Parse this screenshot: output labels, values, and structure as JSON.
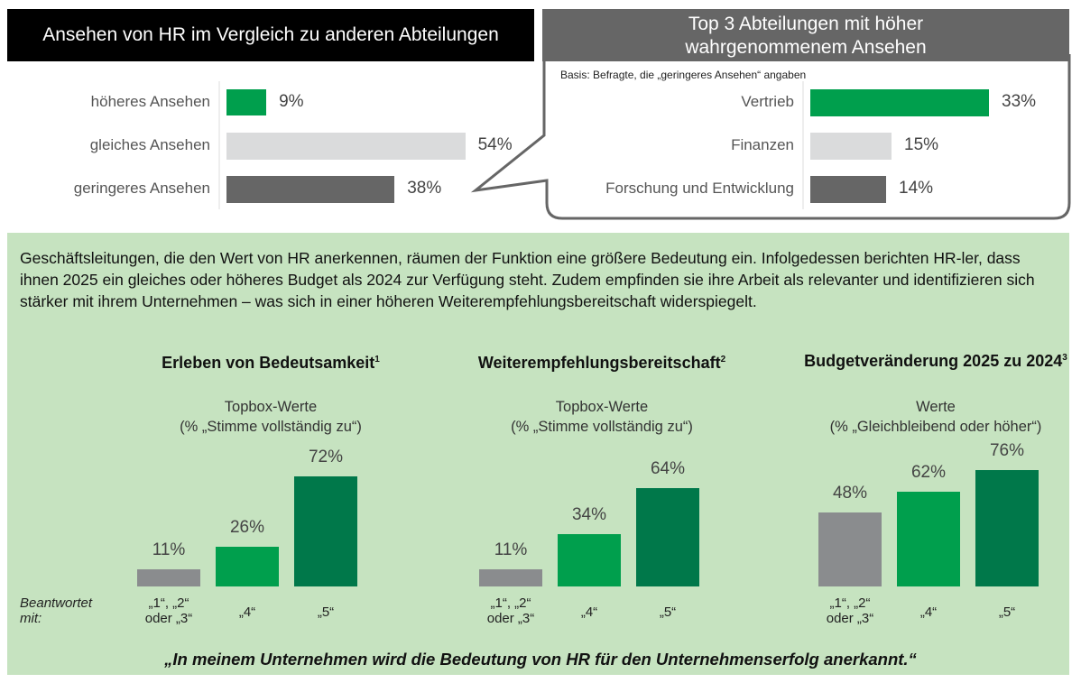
{
  "colors": {
    "green": "#009f4d",
    "light_gray": "#dadbdc",
    "dark_gray": "#666666",
    "mid_gray": "#8a8c8e",
    "dark_green": "#00784a",
    "panel": "#c6e3c0"
  },
  "chart_data": [
    {
      "type": "bar",
      "orientation": "horizontal",
      "title": "Ansehen von HR im Vergleich zu anderen Abteilungen",
      "categories": [
        "höheres Ansehen",
        "gleiches Ansehen",
        "geringeres Ansehen"
      ],
      "values": [
        9,
        54,
        38
      ],
      "labels": [
        "9%",
        "54%",
        "38%"
      ],
      "colors": [
        "#009f4d",
        "#dadbdc",
        "#666666"
      ]
    },
    {
      "type": "bar",
      "orientation": "horizontal",
      "title": "Top 3 Abteilungen mit höher wahrgenommenem Ansehen",
      "subtitle": "Basis: Befragte, die „geringeres Ansehen“ angaben",
      "categories": [
        "Vertrieb",
        "Finanzen",
        "Forschung und Entwicklung"
      ],
      "values": [
        33,
        15,
        14
      ],
      "labels": [
        "33%",
        "15%",
        "14%"
      ],
      "colors": [
        "#009f4d",
        "#dadbdc",
        "#666666"
      ]
    },
    {
      "type": "bar",
      "title": "Erleben von Bedeutsamkeit",
      "footnote": "1",
      "subtitle": [
        "Topbox-Werte",
        "(% „Stimme vollständig zu“)"
      ],
      "categories": [
        "„1“, „2“ oder „3“",
        "„4“",
        "„5“"
      ],
      "values": [
        11,
        26,
        72
      ],
      "labels": [
        "11%",
        "26%",
        "72%"
      ],
      "colors": [
        "#8a8c8e",
        "#009f4d",
        "#00784a"
      ]
    },
    {
      "type": "bar",
      "title": "Weiterempfehlungsbereitschaft",
      "footnote": "2",
      "subtitle": [
        "Topbox-Werte",
        "(% „Stimme vollständig zu“)"
      ],
      "categories": [
        "„1“, „2“ oder „3“",
        "„4“",
        "„5“"
      ],
      "values": [
        11,
        34,
        64
      ],
      "labels": [
        "11%",
        "34%",
        "64%"
      ],
      "colors": [
        "#8a8c8e",
        "#009f4d",
        "#00784a"
      ]
    },
    {
      "type": "bar",
      "title": "Budgetveränderung 2025 zu 2024",
      "footnote": "3",
      "subtitle": [
        "Werte",
        "(% „Gleichbleibend oder höher“)"
      ],
      "categories": [
        "„1“, „2“ oder „3“",
        "„4“",
        "„5“"
      ],
      "values": [
        48,
        62,
        76
      ],
      "labels": [
        "48%",
        "62%",
        "76%"
      ],
      "colors": [
        "#8a8c8e",
        "#009f4d",
        "#00784a"
      ]
    }
  ],
  "intro": "Geschäftsleitungen, die den Wert von HR anerkennen, räumen der Funktion eine größere Bedeutung ein. Infolgedessen berichten HR-ler, dass ihnen 2025 ein gleiches oder höheres Budget als 2024 zur Verfügung steht. Zudem empfinden sie ihre Arbeit als relevanter und identifizieren sich stärker mit ihrem Unternehmen – was sich in einer höheren Weiterempfehlungsbereitschaft widerspiegelt.",
  "answered_with": "Beantwortet mit:",
  "quote": "„In meinem Unternehmen wird die Bedeutung von HR für den Unternehmenserfolg anerkannt.“"
}
